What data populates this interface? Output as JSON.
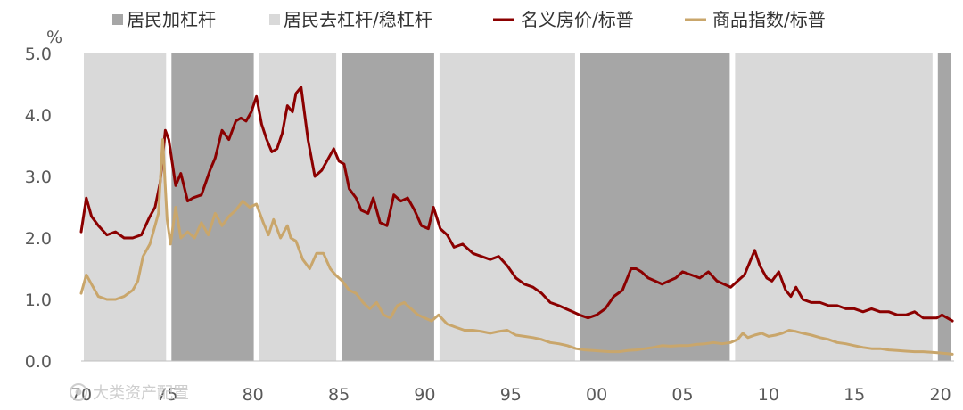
{
  "chart_data": {
    "type": "line",
    "unit_label": "%",
    "x_tick_labels": [
      "70",
      "75",
      "80",
      "85",
      "90",
      "95",
      "00",
      "05",
      "10",
      "15",
      "20"
    ],
    "x_tick_years": [
      1970,
      1975,
      1980,
      1985,
      1990,
      1995,
      2000,
      2005,
      2010,
      2015,
      2020
    ],
    "y_tick_labels": [
      "0.0",
      "1.0",
      "2.0",
      "3.0",
      "4.0",
      "5.0"
    ],
    "xlim": [
      1970.0,
      2020.8
    ],
    "ylim": [
      0,
      5
    ],
    "legend_position": "top",
    "legend": [
      {
        "label": "居民加杠杆",
        "kind": "square",
        "color": "#a6a6a6"
      },
      {
        "label": "居民去杠杆/稳杠杆",
        "kind": "square",
        "color": "#d9d9d9"
      },
      {
        "label": "名义房价/标普",
        "kind": "line",
        "color": "#8b0000"
      },
      {
        "label": "商品指数/标普",
        "kind": "line",
        "color": "#c9a66b"
      }
    ],
    "regimes": [
      {
        "start": 1970.0,
        "end": 1975.1,
        "type": "去杠杆/稳杠杆",
        "color": "#d9d9d9"
      },
      {
        "start": 1975.1,
        "end": 1980.2,
        "type": "加杠杆",
        "color": "#a6a6a6"
      },
      {
        "start": 1980.2,
        "end": 1985.0,
        "type": "去杠杆/稳杠杆",
        "color": "#d9d9d9"
      },
      {
        "start": 1985.0,
        "end": 1990.7,
        "type": "加杠杆",
        "color": "#a6a6a6"
      },
      {
        "start": 1990.7,
        "end": 1998.9,
        "type": "去杠杆/稳杠杆",
        "color": "#d9d9d9"
      },
      {
        "start": 1998.9,
        "end": 2007.9,
        "type": "加杠杆",
        "color": "#a6a6a6"
      },
      {
        "start": 2007.9,
        "end": 2019.7,
        "type": "去杠杆/稳杠杆",
        "color": "#d9d9d9"
      },
      {
        "start": 2019.7,
        "end": 2020.8,
        "type": "加杠杆",
        "color": "#a6a6a6"
      }
    ],
    "series": [
      {
        "name": "名义房价/标普",
        "color": "#8b0000",
        "x": [
          1970.0,
          1970.3,
          1970.6,
          1971.0,
          1971.5,
          1972.0,
          1972.5,
          1973.0,
          1973.5,
          1974.0,
          1974.3,
          1974.6,
          1974.9,
          1975.1,
          1975.5,
          1975.8,
          1976.2,
          1976.5,
          1977.0,
          1977.5,
          1977.8,
          1978.2,
          1978.6,
          1979.0,
          1979.3,
          1979.6,
          1979.9,
          1980.2,
          1980.5,
          1980.8,
          1981.1,
          1981.4,
          1981.7,
          1982.0,
          1982.3,
          1982.5,
          1982.8,
          1983.2,
          1983.6,
          1984.0,
          1984.4,
          1984.7,
          1985.0,
          1985.3,
          1985.6,
          1986.0,
          1986.3,
          1986.7,
          1987.0,
          1987.4,
          1987.8,
          1988.2,
          1988.6,
          1989.0,
          1989.4,
          1989.8,
          1990.2,
          1990.5,
          1990.9,
          1991.3,
          1991.7,
          1992.2,
          1992.8,
          1993.3,
          1993.8,
          1994.3,
          1994.8,
          1995.3,
          1995.8,
          1996.3,
          1996.8,
          1997.3,
          1997.8,
          1998.2,
          1998.6,
          1999.0,
          1999.5,
          2000.0,
          2000.5,
          2001.0,
          2001.5,
          2002.0,
          2002.3,
          2002.6,
          2003.0,
          2003.4,
          2003.8,
          2004.2,
          2004.6,
          2005.0,
          2005.5,
          2006.0,
          2006.5,
          2007.0,
          2007.4,
          2007.8,
          2008.2,
          2008.6,
          2008.9,
          2009.2,
          2009.5,
          2009.9,
          2010.2,
          2010.6,
          2011.0,
          2011.3,
          2011.6,
          2012.0,
          2012.5,
          2013.0,
          2013.5,
          2014.0,
          2014.5,
          2015.0,
          2015.5,
          2016.0,
          2016.5,
          2017.0,
          2017.5,
          2018.0,
          2018.5,
          2019.0,
          2019.4,
          2019.8,
          2020.1,
          2020.4,
          2020.7
        ],
        "values": [
          2.1,
          2.65,
          2.35,
          2.2,
          2.05,
          2.1,
          2.0,
          2.0,
          2.05,
          2.35,
          2.5,
          2.9,
          3.75,
          3.6,
          2.85,
          3.05,
          2.6,
          2.65,
          2.7,
          3.1,
          3.3,
          3.75,
          3.6,
          3.9,
          3.95,
          3.9,
          4.05,
          4.3,
          3.85,
          3.6,
          3.4,
          3.45,
          3.7,
          4.15,
          4.05,
          4.35,
          4.45,
          3.6,
          3.0,
          3.1,
          3.3,
          3.45,
          3.25,
          3.2,
          2.8,
          2.65,
          2.45,
          2.4,
          2.65,
          2.25,
          2.2,
          2.7,
          2.6,
          2.65,
          2.45,
          2.2,
          2.15,
          2.5,
          2.15,
          2.05,
          1.85,
          1.9,
          1.75,
          1.7,
          1.65,
          1.7,
          1.55,
          1.35,
          1.25,
          1.2,
          1.1,
          0.95,
          0.9,
          0.85,
          0.8,
          0.75,
          0.7,
          0.75,
          0.85,
          1.05,
          1.15,
          1.5,
          1.5,
          1.45,
          1.35,
          1.3,
          1.25,
          1.3,
          1.35,
          1.45,
          1.4,
          1.35,
          1.45,
          1.3,
          1.25,
          1.2,
          1.3,
          1.4,
          1.6,
          1.8,
          1.55,
          1.35,
          1.3,
          1.45,
          1.15,
          1.05,
          1.2,
          1.0,
          0.95,
          0.95,
          0.9,
          0.9,
          0.85,
          0.85,
          0.8,
          0.85,
          0.8,
          0.8,
          0.75,
          0.75,
          0.8,
          0.7,
          0.7,
          0.7,
          0.75,
          0.7,
          0.65
        ],
        "label": "名义房价/标普"
      },
      {
        "name": "商品指数/标普",
        "color": "#c9a66b",
        "x": [
          1970.0,
          1970.3,
          1970.6,
          1971.0,
          1971.5,
          1972.0,
          1972.5,
          1973.0,
          1973.3,
          1973.6,
          1974.0,
          1974.3,
          1974.5,
          1974.75,
          1975.0,
          1975.2,
          1975.5,
          1975.8,
          1976.2,
          1976.6,
          1977.0,
          1977.4,
          1977.8,
          1978.2,
          1978.6,
          1979.0,
          1979.4,
          1979.8,
          1980.2,
          1980.6,
          1980.9,
          1981.2,
          1981.6,
          1982.0,
          1982.2,
          1982.5,
          1982.9,
          1983.3,
          1983.7,
          1984.1,
          1984.5,
          1984.8,
          1985.2,
          1985.6,
          1986.0,
          1986.4,
          1986.8,
          1987.2,
          1987.6,
          1988.0,
          1988.4,
          1988.8,
          1989.2,
          1989.6,
          1990.0,
          1990.4,
          1990.8,
          1991.3,
          1991.8,
          1992.3,
          1992.8,
          1993.3,
          1993.8,
          1994.3,
          1994.8,
          1995.3,
          1995.8,
          1996.3,
          1996.8,
          1997.3,
          1997.8,
          1998.3,
          1998.8,
          1999.3,
          1999.8,
          2000.3,
          2000.8,
          2001.3,
          2001.8,
          2002.3,
          2002.8,
          2003.3,
          2003.8,
          2004.3,
          2004.8,
          2005.3,
          2005.8,
          2006.3,
          2006.8,
          2007.3,
          2007.8,
          2008.2,
          2008.5,
          2008.8,
          2009.2,
          2009.6,
          2010.0,
          2010.4,
          2010.8,
          2011.2,
          2011.6,
          2012.0,
          2012.5,
          2013.0,
          2013.5,
          2014.0,
          2014.5,
          2015.0,
          2015.5,
          2016.0,
          2016.5,
          2017.0,
          2017.5,
          2018.0,
          2018.5,
          2019.0,
          2019.5,
          2020.0,
          2020.4,
          2020.7
        ],
        "values": [
          1.1,
          1.4,
          1.25,
          1.05,
          1.0,
          1.0,
          1.05,
          1.15,
          1.3,
          1.7,
          1.9,
          2.2,
          2.4,
          3.6,
          2.3,
          1.9,
          2.5,
          2.0,
          2.1,
          2.0,
          2.25,
          2.05,
          2.4,
          2.2,
          2.35,
          2.45,
          2.6,
          2.5,
          2.55,
          2.25,
          2.05,
          2.3,
          2.0,
          2.2,
          2.0,
          1.95,
          1.65,
          1.5,
          1.75,
          1.75,
          1.5,
          1.4,
          1.3,
          1.15,
          1.1,
          0.95,
          0.85,
          0.95,
          0.75,
          0.7,
          0.9,
          0.95,
          0.85,
          0.75,
          0.7,
          0.65,
          0.75,
          0.6,
          0.55,
          0.5,
          0.5,
          0.48,
          0.45,
          0.48,
          0.5,
          0.42,
          0.4,
          0.38,
          0.35,
          0.3,
          0.28,
          0.25,
          0.2,
          0.18,
          0.17,
          0.16,
          0.15,
          0.15,
          0.17,
          0.18,
          0.2,
          0.22,
          0.25,
          0.24,
          0.25,
          0.25,
          0.27,
          0.28,
          0.3,
          0.28,
          0.3,
          0.35,
          0.45,
          0.38,
          0.42,
          0.45,
          0.4,
          0.42,
          0.45,
          0.5,
          0.48,
          0.45,
          0.42,
          0.38,
          0.35,
          0.3,
          0.28,
          0.25,
          0.22,
          0.2,
          0.2,
          0.18,
          0.17,
          0.16,
          0.15,
          0.15,
          0.14,
          0.13,
          0.12,
          0.11
        ],
        "label": "商品指数/标普"
      }
    ]
  },
  "watermark": {
    "text": "大类资产配置",
    "icon": "eye-logo-icon"
  }
}
